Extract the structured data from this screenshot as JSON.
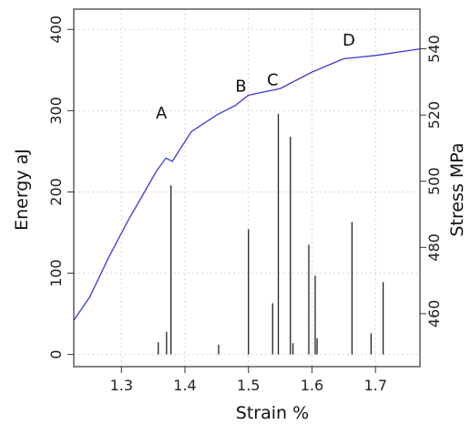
{
  "chart_data": {
    "type": "line",
    "title": "",
    "xlabel": "Strain %",
    "ylabel_left": "Energy aJ",
    "ylabel_right": "Stress MPa",
    "xlim": [
      1.225,
      1.77
    ],
    "ylim_left": [
      -15,
      425
    ],
    "ylim_right": [
      444,
      552
    ],
    "x_ticks": [
      1.3,
      1.4,
      1.5,
      1.6,
      1.7
    ],
    "x_tick_labels": [
      "1.3",
      "1.4",
      "1.5",
      "1.6",
      "1.7"
    ],
    "y_left_ticks": [
      0,
      100,
      200,
      300,
      400
    ],
    "y_left_tick_labels": [
      "0",
      "100",
      "200",
      "300",
      "400"
    ],
    "y_right_ticks": [
      460,
      480,
      500,
      520,
      540
    ],
    "y_right_tick_labels": [
      "460",
      "480",
      "500",
      "520",
      "540"
    ],
    "grid": true,
    "series": [
      {
        "kind": "line",
        "axis": "right",
        "color": "#3b3bd6",
        "x": [
          1.225,
          1.25,
          1.28,
          1.31,
          1.34,
          1.355,
          1.37,
          1.38,
          1.39,
          1.41,
          1.45,
          1.48,
          1.5,
          1.55,
          1.6,
          1.65,
          1.7,
          1.77
        ],
        "y": [
          458,
          465,
          477,
          488,
          498,
          503,
          507,
          506,
          509,
          515,
          520,
          523,
          526,
          528,
          533,
          537,
          538,
          540
        ]
      },
      {
        "kind": "bars",
        "axis": "left",
        "color": "#222222",
        "x": [
          1.358,
          1.371,
          1.378,
          1.453,
          1.5,
          1.538,
          1.547,
          1.566,
          1.57,
          1.595,
          1.605,
          1.608,
          1.663,
          1.693,
          1.712
        ],
        "y": [
          15,
          28,
          208,
          12,
          154,
          63,
          296,
          268,
          14,
          135,
          97,
          20,
          163,
          26,
          89
        ]
      }
    ],
    "annotations": [
      {
        "text": "A",
        "x": 1.363,
        "y_right": 519
      },
      {
        "text": "B",
        "x": 1.488,
        "y_right": 527
      },
      {
        "text": "C",
        "x": 1.538,
        "y_right": 529
      },
      {
        "text": "D",
        "x": 1.658,
        "y_right": 541
      }
    ]
  }
}
